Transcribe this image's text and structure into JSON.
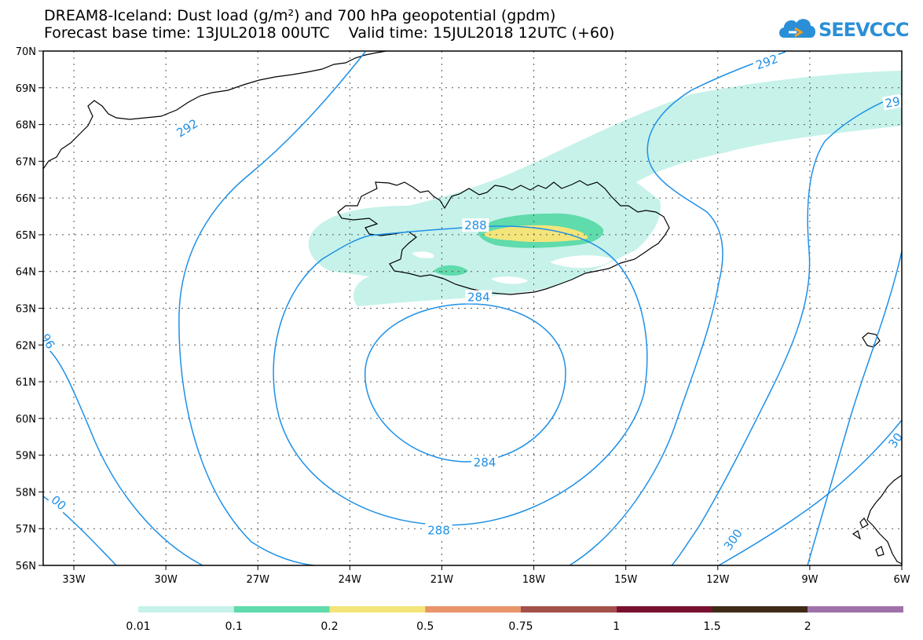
{
  "header": {
    "title_line1": "DREAM8-Iceland: Dust load (g/m²) and 700 hPa geopotential (gpdm)",
    "title_line2": "Forecast base time: 13JUL2018 00UTC    Valid time: 15JUL2018 12UTC (+60)"
  },
  "logo": {
    "text": "SEEVCCC",
    "color": "#2a8fd6",
    "icon": "cloud-icon"
  },
  "map": {
    "lon_range": [
      -34.0,
      -6.0
    ],
    "lat_range": [
      56.0,
      70.0
    ],
    "lon_ticks": [
      {
        "value": -33,
        "label": "33W"
      },
      {
        "value": -30,
        "label": "30W"
      },
      {
        "value": -27,
        "label": "27W"
      },
      {
        "value": -24,
        "label": "24W"
      },
      {
        "value": -21,
        "label": "21W"
      },
      {
        "value": -18,
        "label": "18W"
      },
      {
        "value": -15,
        "label": "15W"
      },
      {
        "value": -12,
        "label": "12W"
      },
      {
        "value": -9,
        "label": "9W"
      },
      {
        "value": -6,
        "label": "6W"
      }
    ],
    "lat_ticks": [
      {
        "value": 70,
        "label": "70N"
      },
      {
        "value": 69,
        "label": "69N"
      },
      {
        "value": 68,
        "label": "68N"
      },
      {
        "value": 67,
        "label": "67N"
      },
      {
        "value": 66,
        "label": "66N"
      },
      {
        "value": 65,
        "label": "65N"
      },
      {
        "value": 64,
        "label": "64N"
      },
      {
        "value": 63,
        "label": "63N"
      },
      {
        "value": 62,
        "label": "62N"
      },
      {
        "value": 61,
        "label": "61N"
      },
      {
        "value": 60,
        "label": "60N"
      },
      {
        "value": 59,
        "label": "59N"
      },
      {
        "value": 58,
        "label": "58N"
      },
      {
        "value": 57,
        "label": "57N"
      },
      {
        "value": 56,
        "label": "56N"
      }
    ],
    "grid": true,
    "contour_color": "#1e90e6",
    "contour_labels": [
      {
        "text": "292",
        "lon": -29.3,
        "lat": 67.9,
        "angle": -32
      },
      {
        "text": "292",
        "lon": -10.4,
        "lat": 69.7,
        "angle": -20
      },
      {
        "text": "29",
        "lon": -6.3,
        "lat": 68.6,
        "angle": -10
      },
      {
        "text": "288",
        "lon": -19.9,
        "lat": 65.25,
        "angle": 0
      },
      {
        "text": "284",
        "lon": -19.8,
        "lat": 63.3,
        "angle": 0
      },
      {
        "text": "284",
        "lon": -19.6,
        "lat": 58.8,
        "angle": 0
      },
      {
        "text": "288",
        "lon": -21.1,
        "lat": 56.95,
        "angle": 0
      },
      {
        "text": "96",
        "lon": -33.85,
        "lat": 62.1,
        "angle": 60
      },
      {
        "text": "00",
        "lon": -33.5,
        "lat": 57.7,
        "angle": 40
      },
      {
        "text": "300",
        "lon": -11.5,
        "lat": 56.7,
        "angle": -55
      },
      {
        "text": "30",
        "lon": -6.2,
        "lat": 59.4,
        "angle": -55
      }
    ]
  },
  "legend": {
    "colors": [
      "#c6f2ea",
      "#5fdbac",
      "#f4e57a",
      "#e8956a",
      "#a4504a",
      "#7a1030",
      "#3e2a16",
      "#9e72a8"
    ],
    "labels": [
      "0.01",
      "0.1",
      "0.2",
      "0.5",
      "0.75",
      "1",
      "1.5",
      "2"
    ]
  }
}
